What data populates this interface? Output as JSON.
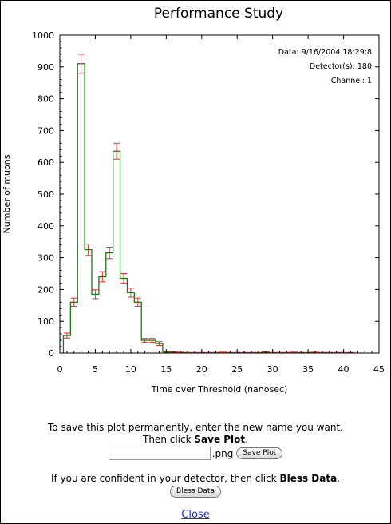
{
  "chart_data": {
    "type": "histogram",
    "title": "Performance Study",
    "xlabel": "Time over Threshold (nanosec)",
    "ylabel": "Number of muons",
    "xlim": [
      0,
      45
    ],
    "ylim": [
      0,
      1000
    ],
    "xticks": [
      0,
      5,
      10,
      15,
      20,
      25,
      30,
      35,
      40,
      45
    ],
    "yticks": [
      0,
      100,
      200,
      300,
      400,
      500,
      600,
      700,
      800,
      900,
      1000
    ],
    "grid": false,
    "bin_width": 1,
    "bin_start": 0.5,
    "values": [
      55,
      160,
      910,
      325,
      185,
      240,
      315,
      635,
      235,
      190,
      160,
      40,
      40,
      30,
      4,
      3,
      2,
      1,
      1,
      1,
      1,
      1,
      2,
      1,
      1,
      1,
      1,
      1,
      3,
      1,
      1,
      1,
      2,
      1,
      1,
      2,
      1,
      1,
      1,
      1,
      1
    ],
    "errors": [
      8,
      13,
      30,
      18,
      14,
      16,
      18,
      25,
      15,
      14,
      13,
      6,
      6,
      6,
      2,
      2,
      1,
      1,
      1,
      1,
      1,
      1,
      1,
      1,
      1,
      1,
      1,
      1,
      2,
      1,
      1,
      1,
      1,
      1,
      1,
      1,
      1,
      1,
      1,
      1,
      1
    ],
    "info": [
      "Data: 9/16/2004 18:29:8",
      "Detector(s): 180",
      "Channel: 1"
    ],
    "colors": {
      "line": "#1a7a1a",
      "error": "#e83030",
      "axis": "#000000"
    }
  },
  "save": {
    "line1": "To save this plot permanently, enter the new name you want.",
    "line2_prefix": "Then click ",
    "line2_bold": "Save Plot",
    "line2_suffix": ".",
    "input_value": "",
    "extension": ".png",
    "button_label": "Save Plot"
  },
  "bless": {
    "prefix": "If you are confident in your detector, then click ",
    "bold": "Bless Data",
    "suffix": ".",
    "button_label": "Bless Data"
  },
  "close_label": "Close"
}
